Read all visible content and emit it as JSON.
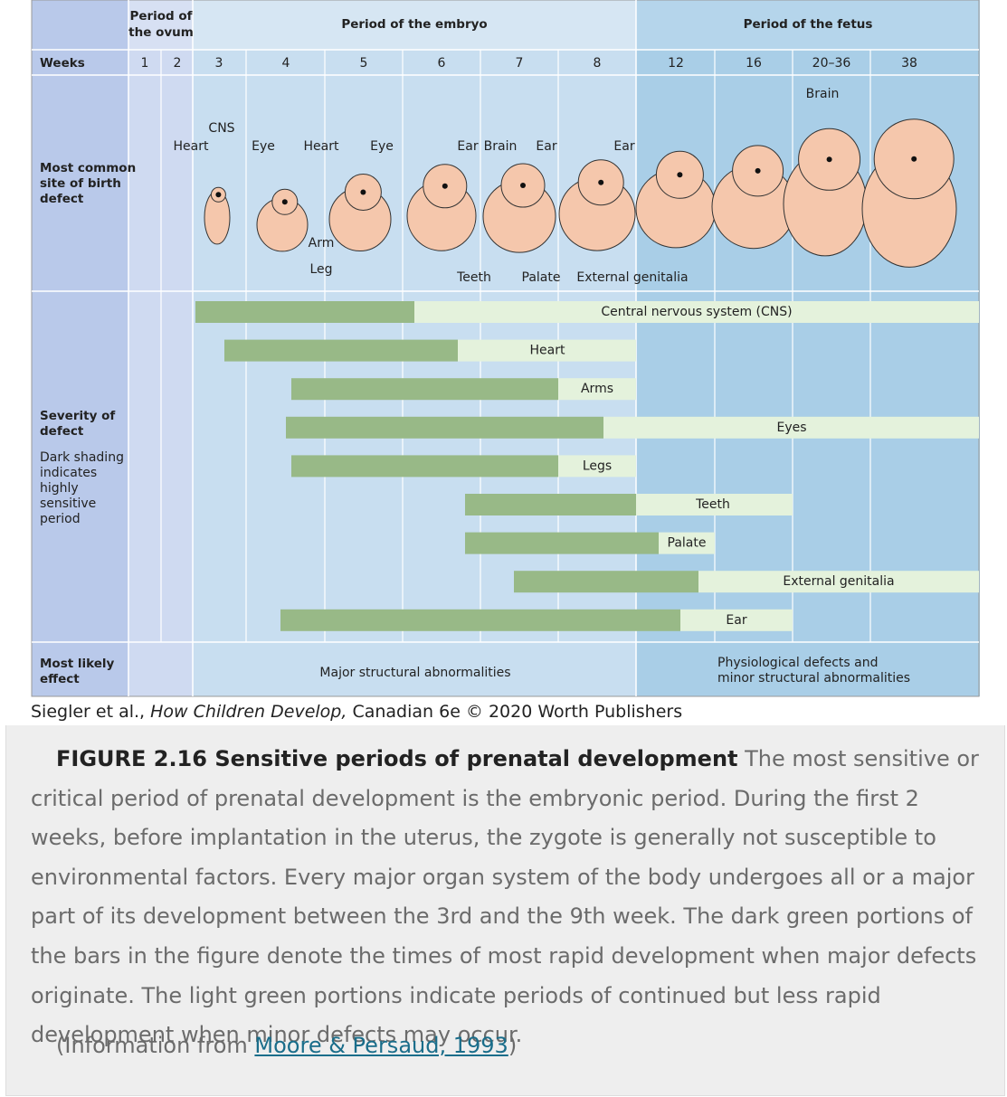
{
  "header": {
    "ovum_period": [
      "Period of",
      "the ovum"
    ],
    "embryo_period": "Period of the embryo",
    "fetus_period": "Period of the fetus"
  },
  "row_labels": {
    "weeks": "Weeks",
    "birth_defect_site": [
      "Most common",
      "site of birth",
      "defect"
    ],
    "severity": [
      "Severity of",
      "defect"
    ],
    "severity_note": [
      "Dark shading",
      "indicates",
      "highly",
      "sensitive",
      "period"
    ],
    "likely_effect": [
      "Most likely",
      "effect"
    ]
  },
  "weeks": [
    "1",
    "2",
    "3",
    "4",
    "5",
    "6",
    "7",
    "8",
    "12",
    "16",
    "20–36",
    "38"
  ],
  "site_labels": [
    "CNS",
    "Heart",
    "Eye",
    "Heart",
    "Eye",
    "Ear",
    "Brain",
    "Ear",
    "Ear",
    "Brain",
    "Arm",
    "Leg",
    "Teeth",
    "Palate",
    "External genitalia"
  ],
  "bars": [
    "Central nervous system (CNS)",
    "Heart",
    "Arms",
    "Eyes",
    "Legs",
    "Teeth",
    "Palate",
    "External genitalia",
    "Ear"
  ],
  "effects": {
    "embryo": "Major structural abnormalities",
    "fetus": [
      "Physiological defects and",
      "minor structural abnormalities"
    ]
  },
  "credit": {
    "authors": "Siegler et al., ",
    "book": "How Children Develop,",
    "rest": " Canadian 6e © 2020 Worth Publishers"
  },
  "caption": {
    "title": "FIGURE 2.16 Sensitive periods of prenatal development",
    "text": " The most sensitive or critical period of prenatal development is the embryonic period. During the first 2 weeks, before implantation in the uterus, the zygote is generally not susceptible to environmental factors. Every major organ system of the body undergoes all or a major part of its development between the 3rd and the 9th week. The dark green portions of the bars in the figure denote the times of most rapid development when major defects originate. The light green portions indicate periods of continued but less rapid development when minor defects may occur."
  },
  "source": {
    "prefix": "(Information from ",
    "link": "Moore & Persaud, 1993",
    "suffix": ")"
  }
}
